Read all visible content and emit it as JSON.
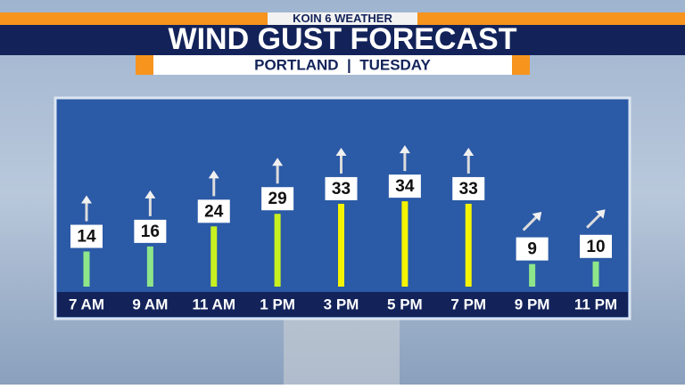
{
  "chart_data": {
    "type": "bar",
    "station": "KOIN 6 WEATHER",
    "title": "WIND GUST FORECAST",
    "subtitle": "PORTLAND  |  TUESDAY",
    "categories": [
      "7 AM",
      "9 AM",
      "11 AM",
      "1 PM",
      "3 PM",
      "5 PM",
      "7 PM",
      "9 PM",
      "11 PM"
    ],
    "values": [
      14,
      16,
      24,
      29,
      33,
      34,
      33,
      9,
      10
    ],
    "colors": [
      "#8ee68a",
      "#8ee68a",
      "#c8f01e",
      "#c8f01e",
      "#f4f400",
      "#f4f400",
      "#f4f400",
      "#8ee68a",
      "#8ee68a"
    ],
    "arrow_angles": [
      0,
      0,
      0,
      0,
      0,
      0,
      0,
      45,
      45
    ]
  }
}
